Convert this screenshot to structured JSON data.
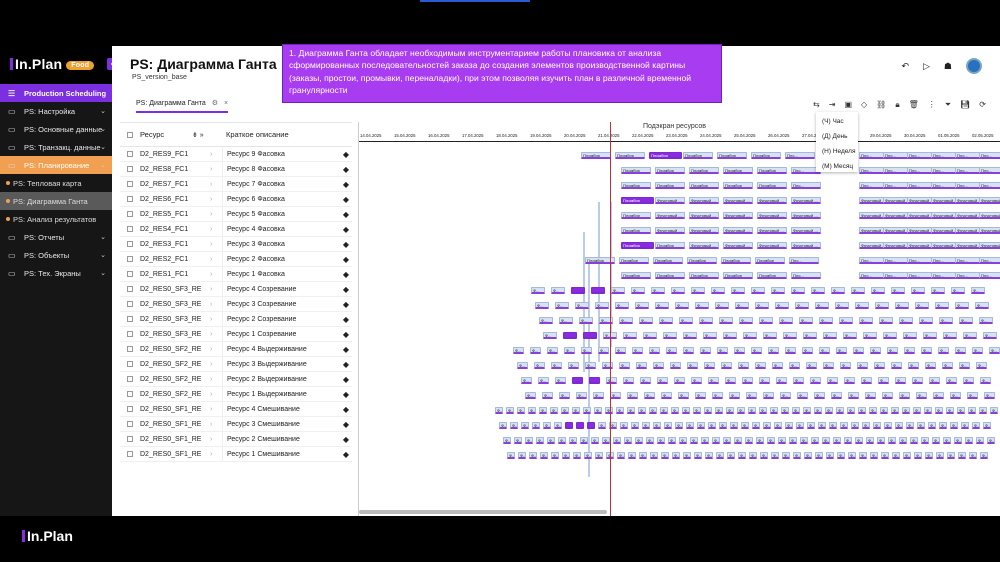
{
  "app": {
    "brand": "In.Plan",
    "brand_badge": "Food",
    "brand_bottom": "In.Plan"
  },
  "sidebar": {
    "items": [
      {
        "label": "Production Scheduling",
        "type": "head",
        "icon": "menu-icon"
      },
      {
        "label": "PS: Настройка",
        "type": "folder",
        "icon": "folder-icon"
      },
      {
        "label": "PS: Основные данные",
        "type": "folder",
        "icon": "folder-icon"
      },
      {
        "label": "PS: Транзакц. данные",
        "type": "folder",
        "icon": "folder-icon"
      },
      {
        "label": "PS: Планирование",
        "type": "active",
        "icon": "folder-icon"
      },
      {
        "label": "PS: Тепловая карта",
        "type": "sub"
      },
      {
        "label": "PS: Диаграмма Ганта",
        "type": "sub-selected"
      },
      {
        "label": "PS: Анализ результатов",
        "type": "sub"
      },
      {
        "label": "PS: Отчеты",
        "type": "folder",
        "icon": "folder-icon"
      },
      {
        "label": "PS: Объекты",
        "type": "folder",
        "icon": "folder-icon"
      },
      {
        "label": "PS: Тех. Экраны",
        "type": "folder",
        "icon": "folder-icon"
      }
    ]
  },
  "page": {
    "title": "PS: Диаграмма Ганта",
    "version": "PS_version_base",
    "tab": "PS: Диаграмма Ганта"
  },
  "callout": {
    "text": "1. Диаграмма Ганта обладает необходимым инструментарием работы плановика от анализа сформированных последовательностей заказа до создания элементов производственной картины (заказы, простои, промывки, переналадки), при этом позволяя изучить план в различной временной гранулярности"
  },
  "table": {
    "headers": {
      "resource": "Ресурс",
      "desc": "Краткое описание"
    },
    "rows": [
      {
        "res": "D2_RES9_FC1",
        "desc": "Ресурс 9 Фасовка"
      },
      {
        "res": "D2_RES8_FC1",
        "desc": "Ресурс 8 Фасовка"
      },
      {
        "res": "D2_RES7_FC1",
        "desc": "Ресурс 7 Фасовка"
      },
      {
        "res": "D2_RES6_FC1",
        "desc": "Ресурс 6 Фасовка"
      },
      {
        "res": "D2_RES5_FC1",
        "desc": "Ресурс 5 Фасовка"
      },
      {
        "res": "D2_RES4_FC1",
        "desc": "Ресурс 4 Фасовка"
      },
      {
        "res": "D2_RES3_FC1",
        "desc": "Ресурс 3 Фасовка"
      },
      {
        "res": "D2_RES2_FC1",
        "desc": "Ресурс 2 Фасовка"
      },
      {
        "res": "D2_RES1_FC1",
        "desc": "Ресурс 1 Фасовка"
      },
      {
        "res": "D2_RES0_SF3_RE",
        "desc": "Ресурс 4 Созревание"
      },
      {
        "res": "D2_RES0_SF3_RE",
        "desc": "Ресурс 3 Созревание"
      },
      {
        "res": "D2_RES0_SF3_RE",
        "desc": "Ресурс 2 Созревание"
      },
      {
        "res": "D2_RES0_SF3_RE",
        "desc": "Ресурс 1 Созревание"
      },
      {
        "res": "D2_RES0_SF2_RE",
        "desc": "Ресурс 4 Выдерживание"
      },
      {
        "res": "D2_RES0_SF2_RE",
        "desc": "Ресурс 3 Выдерживание"
      },
      {
        "res": "D2_RES0_SF2_RE",
        "desc": "Ресурс 2 Выдерживание"
      },
      {
        "res": "D2_RES0_SF2_RE",
        "desc": "Ресурс 1 Выдерживание"
      },
      {
        "res": "D2_RES0_SF1_RE",
        "desc": "Ресурс 4 Смешивание"
      },
      {
        "res": "D2_RES0_SF1_RE",
        "desc": "Ресурс 3 Смешивание"
      },
      {
        "res": "D2_RES0_SF1_RE",
        "desc": "Ресурс 2 Смешивание"
      },
      {
        "res": "D2_RES0_SF1_RE",
        "desc": "Ресурс 1 Смешивание"
      }
    ]
  },
  "gantt": {
    "title": "Подэкран ресурсов",
    "dates": [
      "14.04.2025",
      "15.04.2025",
      "16.04.2025",
      "17.04.2025",
      "18.04.2025",
      "19.04.2025",
      "20.04.2025",
      "21.04.2025",
      "22.04.2025",
      "23.04.2025",
      "24.04.2025",
      "25.04.2025",
      "26.04.2025",
      "27.04.2025",
      "28.04.2025",
      "29.04.2025",
      "30.04.2025",
      "01.05.2025",
      "02.05.2025"
    ],
    "task_labels": {
      "a": "Пломбир",
      "b": "Фруктовый ...",
      "c": "Пло..."
    }
  },
  "menu": {
    "items": [
      "(Ч) Час",
      "(Д) День",
      "(Н) Неделя",
      "(М) Месяц"
    ]
  },
  "colors": {
    "accent": "#7b2fe0",
    "active": "#f0a050",
    "callout": "#a83cf0",
    "now_line": "#c03030"
  }
}
